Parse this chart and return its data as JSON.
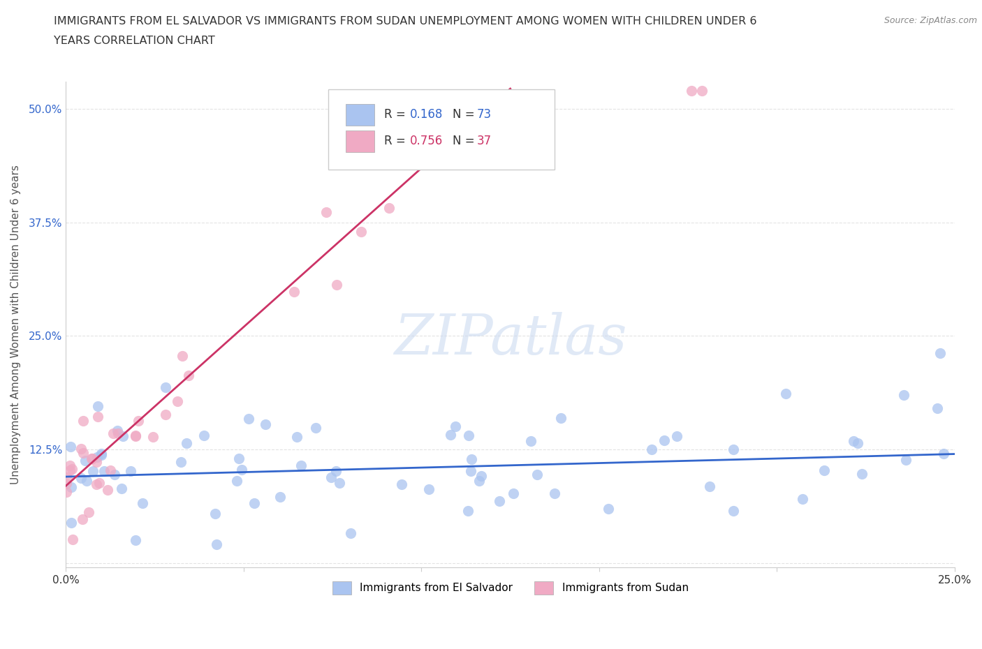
{
  "title_line1": "IMMIGRANTS FROM EL SALVADOR VS IMMIGRANTS FROM SUDAN UNEMPLOYMENT AMONG WOMEN WITH CHILDREN UNDER 6",
  "title_line2": "YEARS CORRELATION CHART",
  "source": "Source: ZipAtlas.com",
  "ylabel": "Unemployment Among Women with Children Under 6 years",
  "xlim": [
    0.0,
    0.25
  ],
  "ylim": [
    -0.005,
    0.53
  ],
  "x_ticks": [
    0.0,
    0.05,
    0.1,
    0.15,
    0.2,
    0.25
  ],
  "x_tick_labels": [
    "0.0%",
    "",
    "",
    "",
    "",
    "25.0%"
  ],
  "y_ticks": [
    0.0,
    0.125,
    0.25,
    0.375,
    0.5
  ],
  "y_tick_labels": [
    "",
    "12.5%",
    "25.0%",
    "37.5%",
    "50.0%"
  ],
  "background_color": "#ffffff",
  "grid_color": "#e0e0e0",
  "watermark": "ZIPatlas",
  "el_salvador_color": "#aac4f0",
  "sudan_color": "#f0aac4",
  "el_salvador_line_color": "#3366cc",
  "sudan_line_color": "#cc3366",
  "R_el_salvador": 0.168,
  "N_el_salvador": 73,
  "R_sudan": 0.756,
  "N_sudan": 37,
  "legend_label_es": "Immigrants from El Salvador",
  "legend_label_sud": "Immigrants from Sudan"
}
